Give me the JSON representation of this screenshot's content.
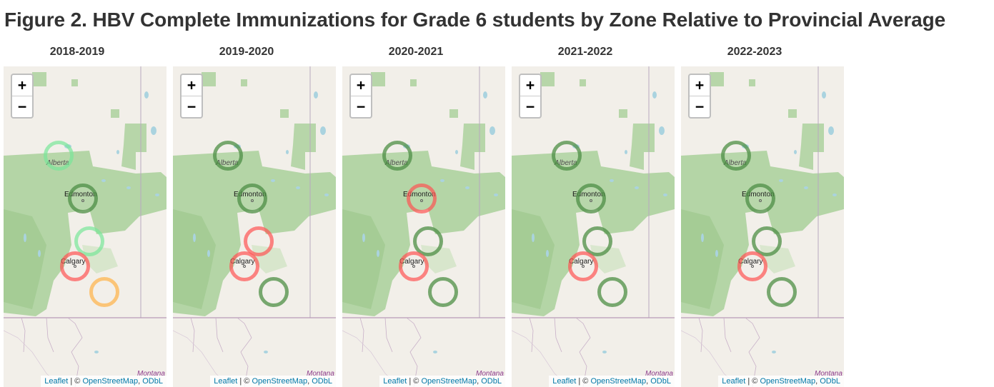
{
  "title": "Figure 2. HBV Complete Immunizations for Grade 6 students by Zone Relative to Provincial Average",
  "colors": {
    "above": "#4e8f46",
    "above_light": "#7ae79a",
    "below": "#ff5454",
    "near": "#ffb347"
  },
  "map": {
    "labels": {
      "province": "Alberta",
      "city1": "Edmonton",
      "city2": "Calgary",
      "region": "Montana"
    },
    "zoom_in": "+",
    "zoom_out": "−",
    "attribution": {
      "leaflet": "Leaflet",
      "sep": " | © ",
      "osm": "OpenStreetMap",
      "comma": ", ",
      "odbl": "ODbL"
    }
  },
  "panels": [
    {
      "year": "2018-2019",
      "zones": [
        "above_light",
        "above",
        "above_light",
        "below",
        "near"
      ]
    },
    {
      "year": "2019-2020",
      "zones": [
        "above",
        "above",
        "below",
        "below",
        "above"
      ]
    },
    {
      "year": "2020-2021",
      "zones": [
        "above",
        "below",
        "above",
        "below",
        "above"
      ]
    },
    {
      "year": "2021-2022",
      "zones": [
        "above",
        "above",
        "above",
        "below",
        "above"
      ]
    },
    {
      "year": "2022-2023",
      "zones": [
        "above",
        "above",
        "above",
        "below",
        "above"
      ]
    }
  ]
}
